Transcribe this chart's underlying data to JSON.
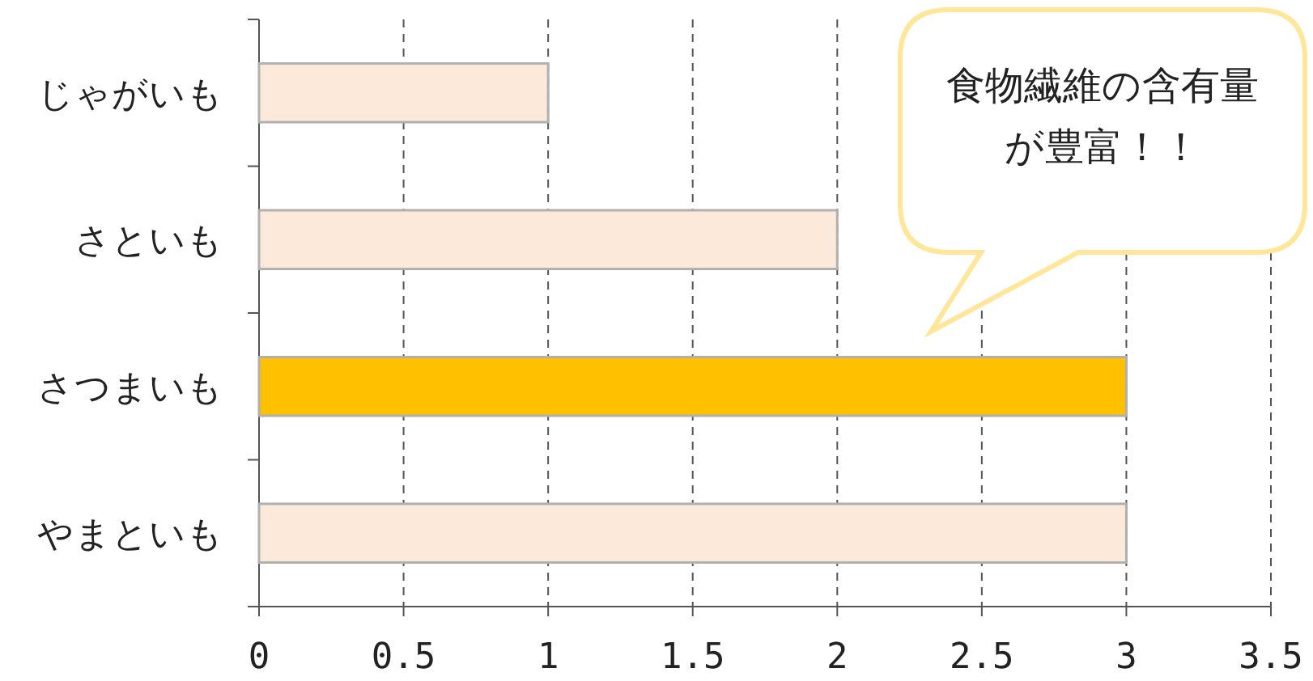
{
  "chart_data": {
    "type": "bar",
    "orientation": "horizontal",
    "categories": [
      "じゃがいも",
      "さといも",
      "さつまいも",
      "やまといも"
    ],
    "values": [
      1,
      2,
      3,
      3
    ],
    "colors": [
      "#fde9d9",
      "#fde9d9",
      "#ffc000",
      "#fde9d9"
    ],
    "xlim": [
      0,
      3.5
    ],
    "xticks": [
      0,
      0.5,
      1,
      1.5,
      2,
      2.5,
      3,
      3.5
    ],
    "grid": "x",
    "annotations": [
      "食物繊維の含有量が豊富！！"
    ]
  }
}
